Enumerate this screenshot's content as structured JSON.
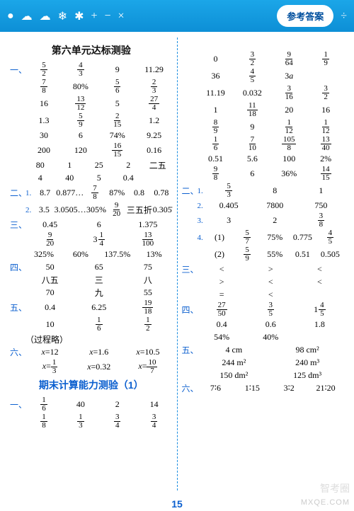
{
  "topbar": {
    "symbols": [
      "●",
      "☁",
      "❄",
      "✱",
      "+",
      "−",
      "×",
      "÷"
    ],
    "badge": "参考答案"
  },
  "left": {
    "unit_title": "第六单元达标测验",
    "s1": {
      "label": "一、",
      "rows": [
        [
          {
            "f": [
              5,
              2
            ]
          },
          {
            "f": [
              4,
              3
            ]
          },
          "9",
          "11.29"
        ],
        [
          {
            "f": [
              7,
              8
            ]
          },
          "80%",
          {
            "f": [
              5,
              6
            ]
          },
          {
            "f": [
              2,
              3
            ]
          }
        ],
        [
          "16",
          {
            "f": [
              13,
              12
            ]
          },
          "5",
          {
            "f": [
              27,
              4
            ]
          }
        ],
        [
          "1.3",
          {
            "f": [
              5,
              9
            ]
          },
          {
            "f": [
              2,
              15
            ]
          },
          "1.2"
        ],
        [
          "30",
          "6",
          "74%",
          "9.25"
        ],
        [
          "200",
          "120",
          {
            "f": [
              16,
              15
            ]
          },
          "0.16"
        ]
      ],
      "rows_dense": [
        [
          "80",
          "1",
          "25",
          "2",
          "二五"
        ],
        [
          "4",
          "40",
          "5",
          "0.4",
          ""
        ]
      ]
    },
    "s2": {
      "label": "二、",
      "items": [
        {
          "sub": "1.",
          "cells": [
            "8.7",
            "0.877…",
            {
              "f": [
                7,
                8
              ]
            },
            "87%",
            "0.8",
            "0.78"
          ]
        },
        {
          "sub": "2.",
          "cells": [
            "3.5",
            "3.0505…",
            "305%",
            {
              "f": [
                9,
                20
              ]
            },
            "三五折",
            "0.305̇"
          ]
        }
      ]
    },
    "s3": {
      "label": "三、",
      "rows": [
        [
          "0.45",
          "6",
          "1.375"
        ],
        [
          {
            "f": [
              9,
              20
            ]
          },
          {
            "m": [
              3,
              1,
              4
            ]
          },
          {
            "f": [
              13,
              100
            ]
          }
        ],
        [
          "325%",
          "60%",
          "137.5%",
          "13%"
        ]
      ]
    },
    "s4": {
      "label": "四、",
      "rows": [
        [
          "50",
          "65",
          "75"
        ],
        [
          "八五",
          "三",
          "八"
        ],
        [
          "70",
          "九",
          "55"
        ]
      ]
    },
    "s5": {
      "label": "五、",
      "rows": [
        [
          "0.4",
          "6.25",
          {
            "f": [
              19,
              18
            ]
          }
        ],
        [
          "10",
          {
            "f": [
              1,
              6
            ]
          },
          {
            "f": [
              1,
              2
            ]
          }
        ]
      ],
      "note": "（过程略）"
    },
    "s6": {
      "label": "六、",
      "rows": [
        [
          {
            "eq": [
              "x",
              "=12"
            ]
          },
          {
            "eq": [
              "x",
              "=1.6"
            ]
          },
          {
            "eq": [
              "x",
              "=10.5"
            ]
          }
        ],
        [
          {
            "eqf": [
              "x",
              1,
              3
            ]
          },
          {
            "eq": [
              "x",
              "=0.32"
            ]
          },
          {
            "eqf": [
              "x",
              10,
              7
            ]
          }
        ]
      ]
    },
    "final_title": "期末计算能力测验（1）",
    "sF": {
      "label": "一、",
      "rows": [
        [
          {
            "f": [
              1,
              6
            ]
          },
          "40",
          "2",
          "14"
        ],
        [
          {
            "f": [
              1,
              8
            ]
          },
          {
            "f": [
              1,
              3
            ]
          },
          {
            "f": [
              3,
              4
            ]
          },
          {
            "f": [
              3,
              4
            ]
          }
        ]
      ]
    }
  },
  "right": {
    "s1rows": [
      [
        "0",
        {
          "f": [
            3,
            2
          ]
        },
        {
          "f": [
            9,
            64
          ]
        },
        {
          "f": [
            1,
            9
          ]
        }
      ],
      [
        "36",
        {
          "f": [
            4,
            5
          ]
        },
        {
          "r": "3a"
        },
        ""
      ],
      [
        "11.19",
        "0.032",
        {
          "f": [
            3,
            16
          ]
        },
        {
          "f": [
            3,
            2
          ]
        }
      ],
      [
        "1",
        {
          "f": [
            11,
            18
          ]
        },
        "20",
        "16"
      ],
      [
        {
          "f": [
            8,
            9
          ]
        },
        "9",
        {
          "f": [
            1,
            12
          ]
        },
        {
          "f": [
            1,
            12
          ]
        }
      ],
      [
        {
          "f": [
            1,
            6
          ]
        },
        {
          "f": [
            7,
            10
          ]
        },
        {
          "f": [
            105,
            8
          ]
        },
        {
          "f": [
            13,
            40
          ]
        }
      ],
      [
        "0.51",
        "5.6",
        "100",
        "2%"
      ],
      [
        {
          "f": [
            9,
            8
          ]
        },
        "6",
        "36%",
        {
          "f": [
            14,
            15
          ]
        }
      ]
    ],
    "s2": {
      "label": "二、",
      "items": [
        {
          "sub": "1.",
          "cells": [
            {
              "f": [
                5,
                3
              ]
            },
            "8",
            "1"
          ]
        },
        {
          "sub": "2.",
          "cells": [
            "0.405",
            "7800",
            "750"
          ]
        },
        {
          "sub": "3.",
          "cells": [
            "3",
            "2",
            {
              "f": [
                3,
                8
              ]
            }
          ]
        },
        {
          "sub": "4.",
          "cells": [
            "(1)",
            {
              "f": [
                5,
                7
              ]
            },
            "75%",
            "0.775",
            {
              "f": [
                4,
                5
              ]
            }
          ]
        },
        {
          "sub": "",
          "cells": [
            "(2)",
            {
              "f": [
                5,
                9
              ]
            },
            "55%",
            "0.51",
            "0.505"
          ]
        }
      ]
    },
    "s3": {
      "label": "三、",
      "rows": [
        [
          "<",
          ">",
          "<"
        ],
        [
          ">",
          "<",
          "<"
        ],
        [
          "=",
          "<",
          ""
        ]
      ]
    },
    "s4": {
      "label": "四、",
      "rows": [
        [
          {
            "f": [
              27,
              50
            ]
          },
          {
            "f": [
              3,
              5
            ]
          },
          {
            "m": [
              1,
              4,
              5
            ]
          }
        ],
        [
          "0.4",
          "0.6",
          "1.8"
        ],
        [
          "54%",
          "40%",
          ""
        ]
      ]
    },
    "s5": {
      "label": "五、",
      "rows": [
        [
          "4 cm",
          "98 cm²"
        ],
        [
          "244 m²",
          "240 m³"
        ],
        [
          "150 dm²",
          "125 dm³"
        ]
      ]
    },
    "s6": {
      "label": "六、",
      "rows": [
        [
          "7∶6",
          "1∶15",
          "3∶2",
          "21∶20"
        ]
      ]
    }
  },
  "pagenum": "15",
  "watermark_logo": "智考圈",
  "watermark": "MXQE.COM"
}
